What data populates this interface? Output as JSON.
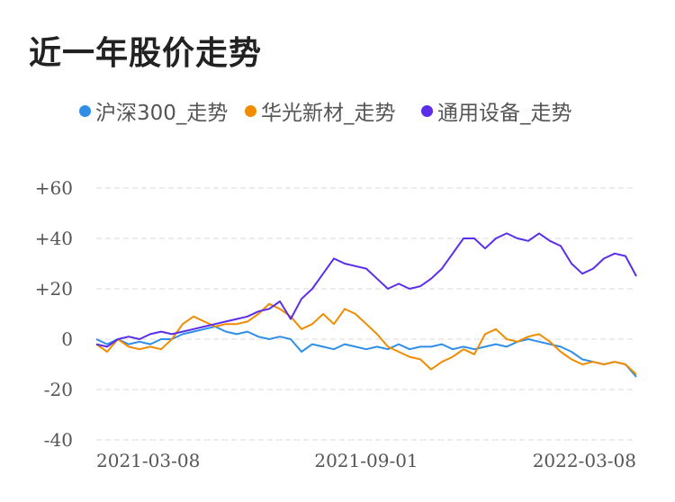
{
  "chart_data": {
    "type": "line",
    "title": "近一年股价走势",
    "xlabel": "",
    "ylabel": "",
    "ylim": [
      -40,
      60
    ],
    "y_ticks": [
      "+60",
      "+40",
      "+20",
      "0",
      "-20",
      "-40"
    ],
    "y_tick_values": [
      60,
      40,
      20,
      0,
      -20,
      -40
    ],
    "x_tick_labels": [
      "2021-03-08",
      "2021-09-01",
      "2022-03-08"
    ],
    "x_range": [
      0,
      100
    ],
    "x_tick_positions": [
      0,
      50,
      100
    ],
    "grid": true,
    "legend_position": "top",
    "series": [
      {
        "name": "沪深300_走势",
        "color": "#2f8fe8",
        "x": [
          0,
          2,
          4,
          6,
          8,
          10,
          12,
          14,
          16,
          18,
          20,
          22,
          24,
          26,
          28,
          30,
          32,
          34,
          36,
          38,
          40,
          42,
          44,
          46,
          48,
          50,
          52,
          54,
          56,
          58,
          60,
          62,
          64,
          66,
          68,
          70,
          72,
          74,
          76,
          78,
          80,
          82,
          84,
          86,
          88,
          90,
          92,
          94,
          96,
          98,
          100
        ],
        "values": [
          0,
          -2,
          0,
          -2,
          -1,
          -2,
          0,
          0,
          2,
          3,
          4,
          5,
          3,
          2,
          3,
          1,
          0,
          1,
          0,
          -5,
          -2,
          -3,
          -4,
          -2,
          -3,
          -4,
          -3,
          -4,
          -2,
          -4,
          -3,
          -3,
          -2,
          -4,
          -3,
          -4,
          -3,
          -2,
          -3,
          -1,
          0,
          -1,
          -2,
          -3,
          -5,
          -8,
          -9,
          -10,
          -9,
          -10,
          -15
        ]
      },
      {
        "name": "华光新材_走势",
        "color": "#f08c00",
        "x": [
          0,
          2,
          4,
          6,
          8,
          10,
          12,
          14,
          16,
          18,
          20,
          22,
          24,
          26,
          28,
          30,
          32,
          34,
          36,
          38,
          40,
          42,
          44,
          46,
          48,
          50,
          52,
          54,
          56,
          58,
          60,
          62,
          64,
          66,
          68,
          70,
          72,
          74,
          76,
          78,
          80,
          82,
          84,
          86,
          88,
          90,
          92,
          94,
          96,
          98,
          100
        ],
        "values": [
          -2,
          -5,
          0,
          -3,
          -4,
          -3,
          -4,
          0,
          6,
          9,
          7,
          5,
          6,
          6,
          7,
          10,
          14,
          12,
          9,
          4,
          6,
          10,
          6,
          12,
          10,
          6,
          2,
          -3,
          -5,
          -7,
          -8,
          -12,
          -9,
          -7,
          -4,
          -6,
          2,
          4,
          0,
          -1,
          1,
          2,
          -1,
          -5,
          -8,
          -10,
          -9,
          -10,
          -9,
          -10,
          -14
        ]
      },
      {
        "name": "通用设备_走势",
        "color": "#5b2ee8",
        "x": [
          0,
          2,
          4,
          6,
          8,
          10,
          12,
          14,
          16,
          18,
          20,
          22,
          24,
          26,
          28,
          30,
          32,
          34,
          36,
          38,
          40,
          42,
          44,
          46,
          48,
          50,
          52,
          54,
          56,
          58,
          60,
          62,
          64,
          66,
          68,
          70,
          72,
          74,
          76,
          78,
          80,
          82,
          84,
          86,
          88,
          90,
          92,
          94,
          96,
          98,
          100
        ],
        "values": [
          -2,
          -3,
          0,
          1,
          0,
          2,
          3,
          2,
          3,
          4,
          5,
          6,
          7,
          8,
          9,
          11,
          12,
          15,
          8,
          16,
          20,
          26,
          32,
          30,
          29,
          28,
          24,
          20,
          22,
          20,
          21,
          24,
          28,
          34,
          40,
          40,
          36,
          40,
          42,
          40,
          39,
          42,
          39,
          37,
          30,
          26,
          28,
          32,
          34,
          33,
          25
        ]
      }
    ]
  }
}
